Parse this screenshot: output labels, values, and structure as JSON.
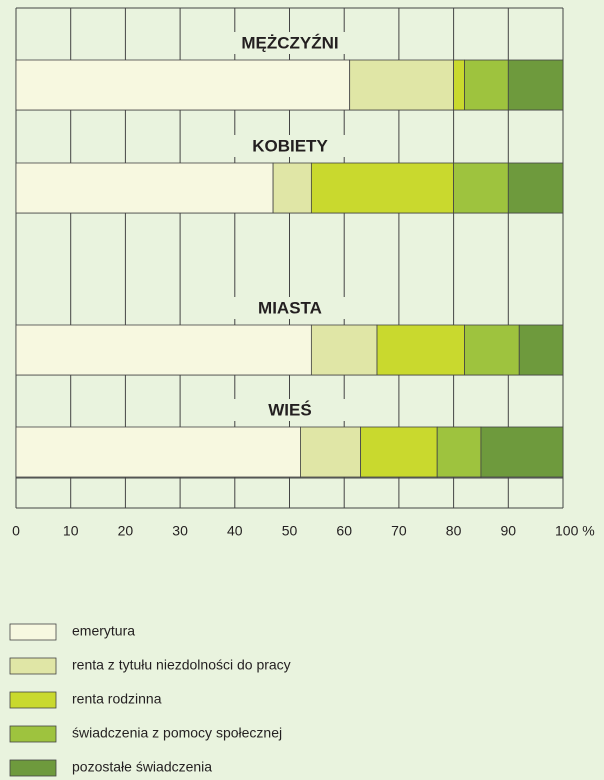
{
  "chart_data": {
    "type": "stacked_barh",
    "categories": [
      "MĘŻCZYŹNI",
      "KOBIETY",
      "MIASTA",
      "WIEŚ"
    ],
    "series": [
      {
        "name": "emerytura",
        "color": "#f7f8e0",
        "values": [
          61,
          47,
          54,
          52
        ]
      },
      {
        "name": "renta z tytułu niezdolności do pracy",
        "color": "#e0e6a6",
        "values": [
          19,
          7,
          12,
          11
        ]
      },
      {
        "name": "renta rodzinna",
        "color": "#c9d92e",
        "values": [
          2,
          26,
          16,
          14
        ]
      },
      {
        "name": "świadczenia z pomocy społecznej",
        "color": "#9ec33e",
        "values": [
          8,
          10,
          10,
          8
        ]
      },
      {
        "name": "pozostałe świadczenia",
        "color": "#6e9a3d",
        "values": [
          10,
          10,
          8,
          15
        ]
      }
    ],
    "xlim": [
      0,
      100
    ],
    "xticks": [
      0,
      10,
      20,
      30,
      40,
      50,
      60,
      70,
      80,
      90,
      {
        "value": 100,
        "label": "100 %"
      }
    ],
    "grid": true
  }
}
